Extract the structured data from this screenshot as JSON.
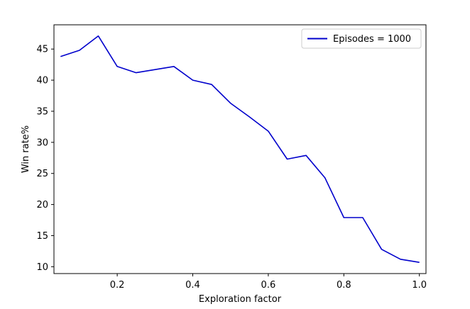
{
  "chart_data": {
    "type": "line",
    "xlabel": "Exploration factor",
    "ylabel": "Win rate%",
    "xlim": [
      0.0325,
      1.0175
    ],
    "ylim": [
      8.9,
      48.9
    ],
    "xticks": [
      0.2,
      0.4,
      0.6,
      0.8,
      1.0
    ],
    "xtick_labels": [
      "0.2",
      "0.4",
      "0.6",
      "0.8",
      "1.0"
    ],
    "yticks": [
      10,
      15,
      20,
      25,
      30,
      35,
      40,
      45
    ],
    "ytick_labels": [
      "10",
      "15",
      "20",
      "25",
      "30",
      "35",
      "40",
      "45"
    ],
    "grid": false,
    "legend_position": "top-right",
    "series": [
      {
        "name": "Episodes = 1000",
        "color": "#0000cc",
        "x": [
          0.05,
          0.1,
          0.15,
          0.2,
          0.25,
          0.3,
          0.35,
          0.4,
          0.45,
          0.5,
          0.55,
          0.6,
          0.65,
          0.7,
          0.75,
          0.8,
          0.85,
          0.9,
          0.95,
          1.0
        ],
        "y": [
          43.8,
          44.8,
          47.1,
          42.2,
          41.2,
          41.7,
          42.2,
          40.0,
          39.3,
          36.3,
          34.1,
          31.8,
          27.3,
          27.9,
          24.3,
          17.9,
          17.9,
          12.8,
          11.2,
          10.7
        ]
      }
    ]
  }
}
